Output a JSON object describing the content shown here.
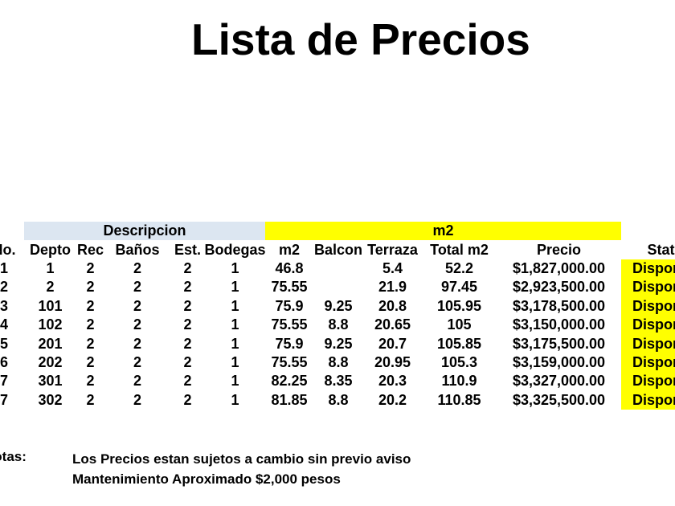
{
  "title": "Lista de Precios",
  "table": {
    "bands": {
      "descripcion": "Descripcion",
      "m2": "m2"
    },
    "columns": [
      "No.",
      "Depto",
      "Rec",
      "Baños",
      "Est.",
      "Bodegas",
      "m2",
      "Balcon",
      "Terraza",
      "Total m2",
      "Precio",
      "Status"
    ],
    "rows": [
      {
        "no": "1",
        "depto": "1",
        "rec": "2",
        "banos": "2",
        "est": "2",
        "bodegas": "1",
        "m2": "46.8",
        "balcon": "",
        "terraza": "5.4",
        "total_m2": "52.2",
        "precio": "$1,827,000.00",
        "status": "Disponible"
      },
      {
        "no": "2",
        "depto": "2",
        "rec": "2",
        "banos": "2",
        "est": "2",
        "bodegas": "1",
        "m2": "75.55",
        "balcon": "",
        "terraza": "21.9",
        "total_m2": "97.45",
        "precio": "$2,923,500.00",
        "status": "Disponible"
      },
      {
        "no": "3",
        "depto": "101",
        "rec": "2",
        "banos": "2",
        "est": "2",
        "bodegas": "1",
        "m2": "75.9",
        "balcon": "9.25",
        "terraza": "20.8",
        "total_m2": "105.95",
        "precio": "$3,178,500.00",
        "status": "Disponible"
      },
      {
        "no": "4",
        "depto": "102",
        "rec": "2",
        "banos": "2",
        "est": "2",
        "bodegas": "1",
        "m2": "75.55",
        "balcon": "8.8",
        "terraza": "20.65",
        "total_m2": "105",
        "precio": "$3,150,000.00",
        "status": "Disponible"
      },
      {
        "no": "5",
        "depto": "201",
        "rec": "2",
        "banos": "2",
        "est": "2",
        "bodegas": "1",
        "m2": "75.9",
        "balcon": "9.25",
        "terraza": "20.7",
        "total_m2": "105.85",
        "precio": "$3,175,500.00",
        "status": "Disponible"
      },
      {
        "no": "6",
        "depto": "202",
        "rec": "2",
        "banos": "2",
        "est": "2",
        "bodegas": "1",
        "m2": "75.55",
        "balcon": "8.8",
        "terraza": "20.95",
        "total_m2": "105.3",
        "precio": "$3,159,000.00",
        "status": "Disponible"
      },
      {
        "no": "7",
        "depto": "301",
        "rec": "2",
        "banos": "2",
        "est": "2",
        "bodegas": "1",
        "m2": "82.25",
        "balcon": "8.35",
        "terraza": "20.3",
        "total_m2": "110.9",
        "precio": "$3,327,000.00",
        "status": "Disponible"
      },
      {
        "no": "7",
        "depto": "302",
        "rec": "2",
        "banos": "2",
        "est": "2",
        "bodegas": "1",
        "m2": "81.85",
        "balcon": "8.8",
        "terraza": "20.2",
        "total_m2": "110.85",
        "precio": "$3,325,500.00",
        "status": "Disponible"
      }
    ]
  },
  "notes": {
    "label": "Notas:",
    "lines": [
      "Los Precios estan sujetos a cambio sin previo aviso",
      "Mantenimiento Aproximado $2,000 pesos"
    ]
  },
  "colors": {
    "band_descripcion": "#DCE6F1",
    "band_m2": "#FFFF00",
    "status_highlight": "#FFFF00",
    "text": "#000000"
  }
}
